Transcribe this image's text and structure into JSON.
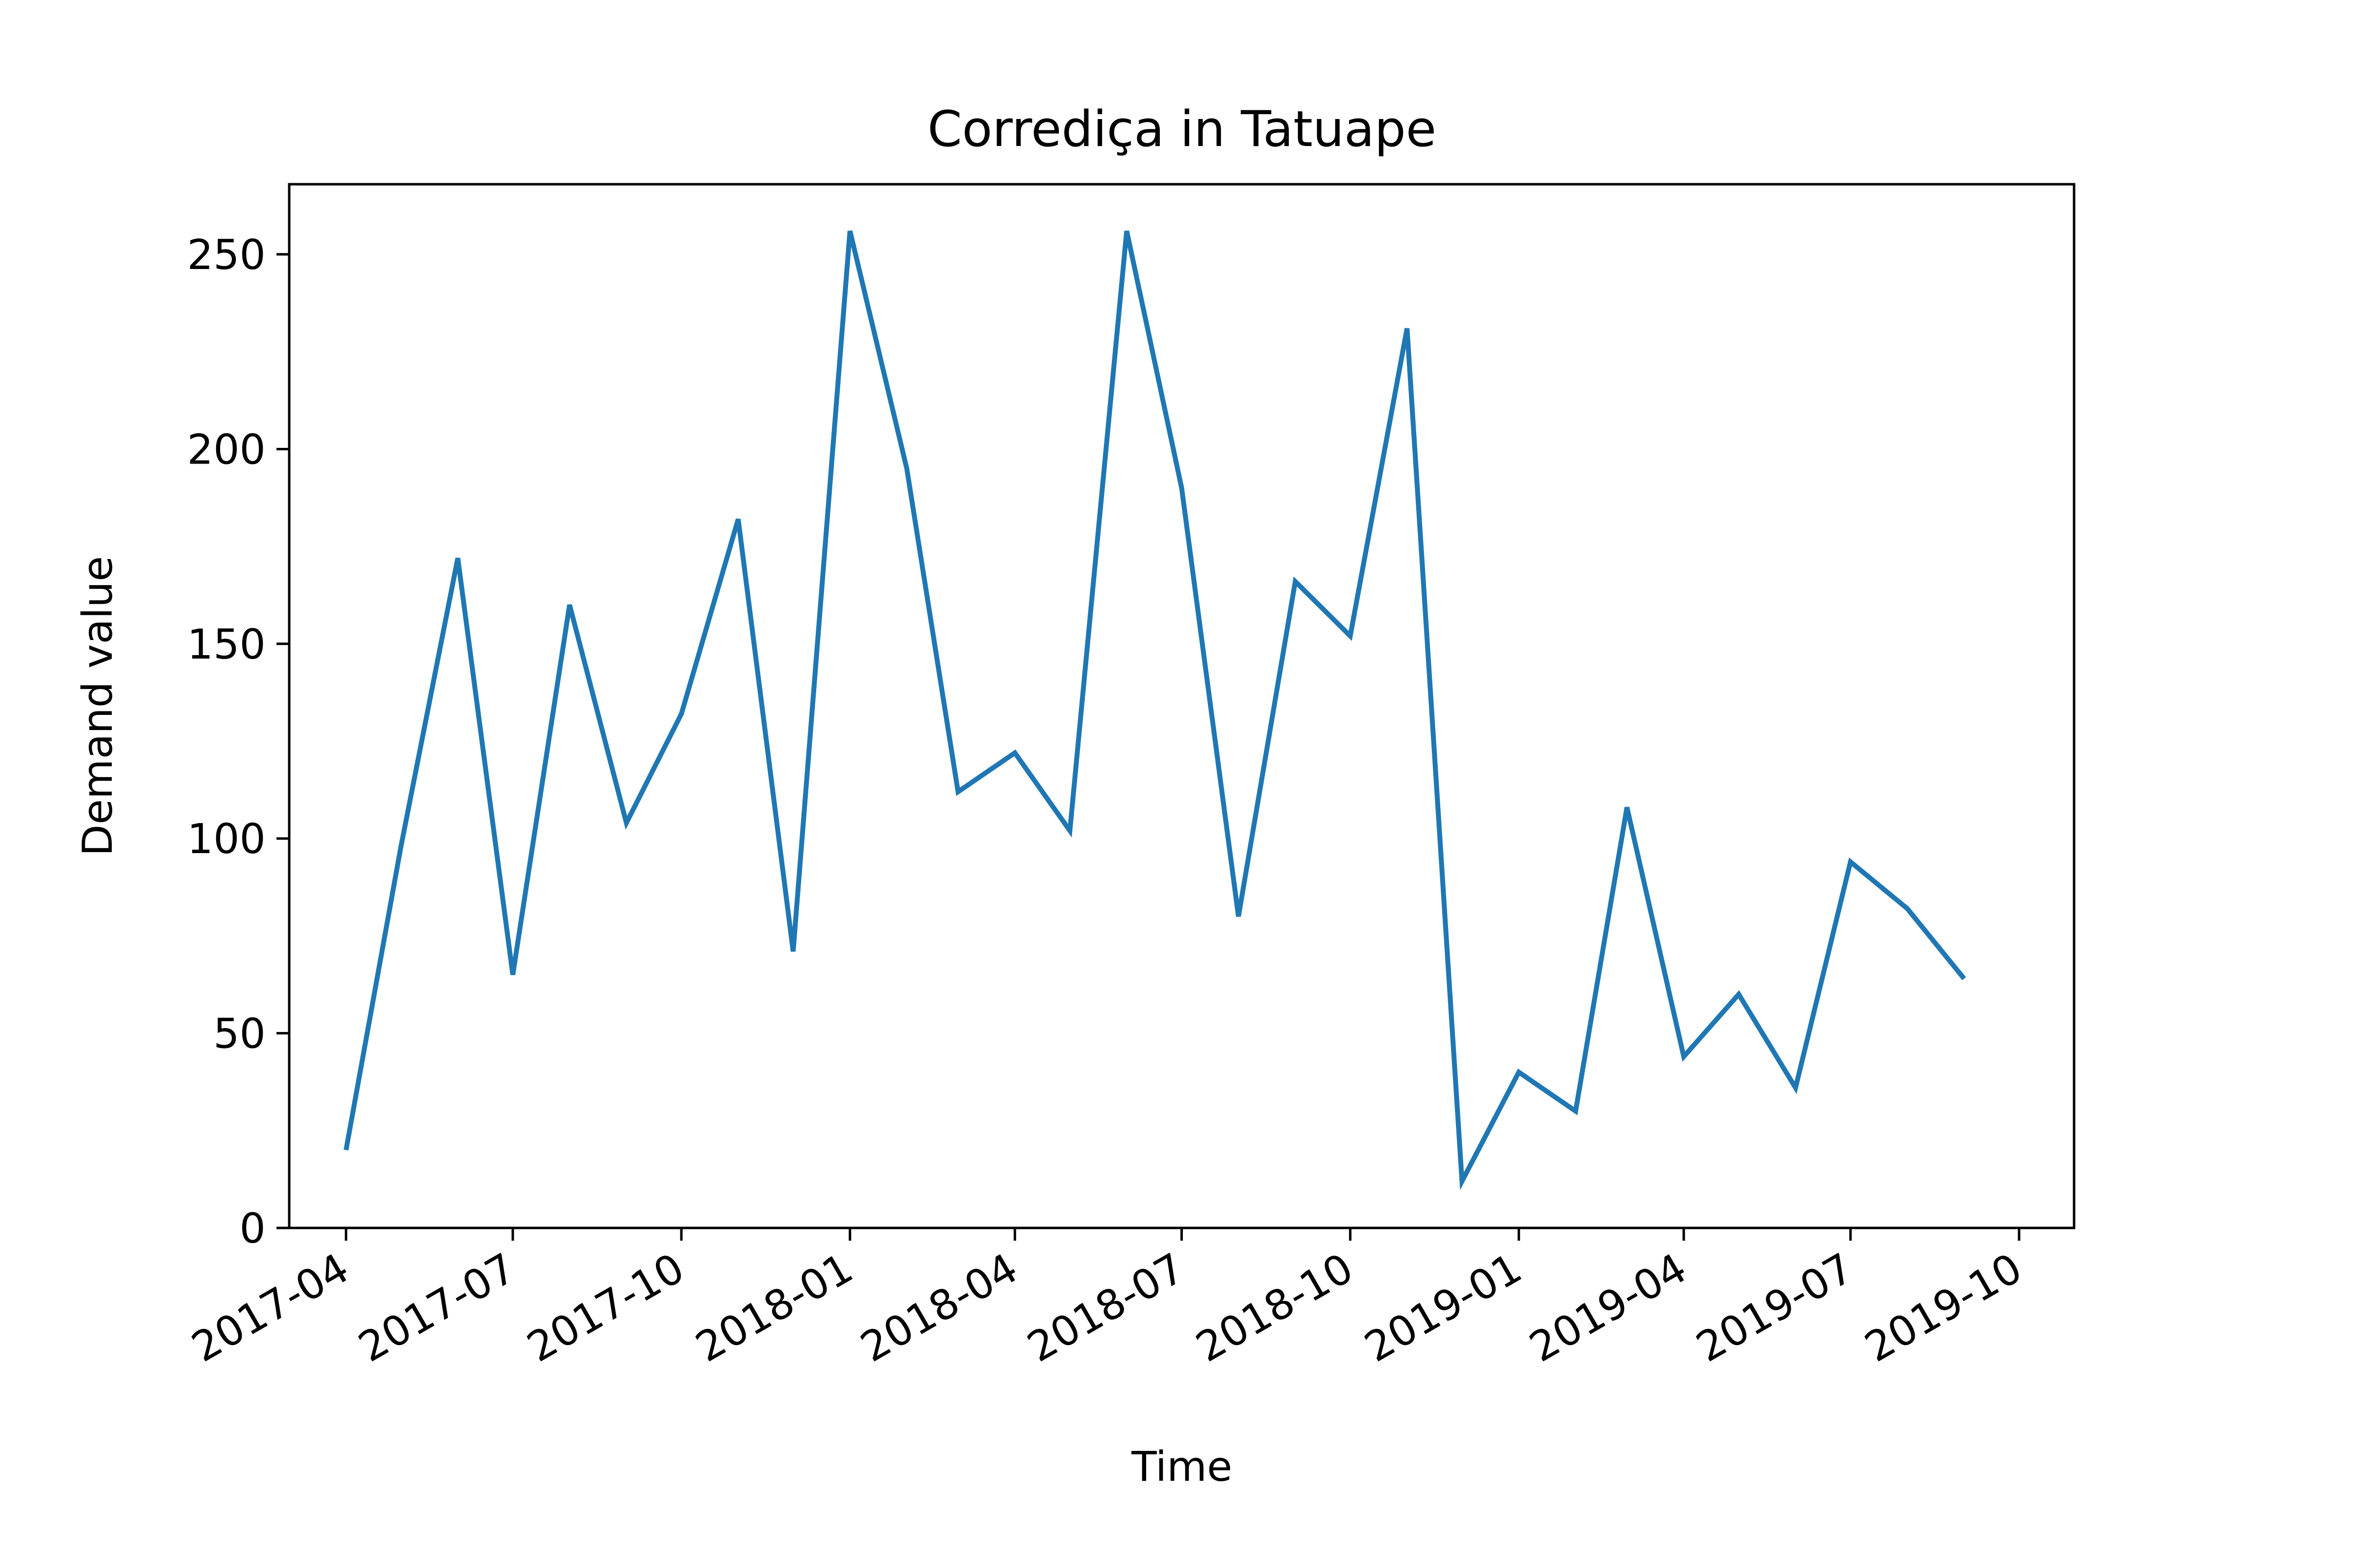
{
  "chart_data": {
    "type": "line",
    "title": "Corrediça in Tatuape",
    "xlabel": "Time",
    "ylabel": "Demand value",
    "xlim": [
      "2017-03-01",
      "2019-10-31"
    ],
    "ylim": [
      0,
      268
    ],
    "x_ticks": [
      "2017-04",
      "2017-07",
      "2017-10",
      "2018-01",
      "2018-04",
      "2018-07",
      "2018-10",
      "2019-01",
      "2019-04",
      "2019-07",
      "2019-10"
    ],
    "y_ticks": [
      "0",
      "50",
      "100",
      "150",
      "200",
      "250"
    ],
    "y_tick_values": [
      0,
      50,
      100,
      150,
      200,
      250
    ],
    "grid": false,
    "legend": "none",
    "series": [
      {
        "color": "#1f77b4",
        "x": [
          "2017-04-01",
          "2017-05-01",
          "2017-06-01",
          "2017-07-01",
          "2017-08-01",
          "2017-09-01",
          "2017-10-01",
          "2017-11-01",
          "2017-12-01",
          "2018-01-01",
          "2018-02-01",
          "2018-03-01",
          "2018-04-01",
          "2018-05-01",
          "2018-06-01",
          "2018-07-01",
          "2018-08-01",
          "2018-09-01",
          "2018-10-01",
          "2018-11-01",
          "2018-12-01",
          "2019-01-01",
          "2019-02-01",
          "2019-03-01",
          "2019-04-01",
          "2019-05-01",
          "2019-06-01",
          "2019-07-01",
          "2019-08-01",
          "2019-09-01"
        ],
        "values": [
          20,
          98,
          172,
          65,
          160,
          104,
          132,
          182,
          71,
          256,
          195,
          112,
          122,
          102,
          256,
          190,
          80,
          166,
          152,
          231,
          12,
          40,
          30,
          108,
          44,
          60,
          36,
          94,
          82,
          64
        ]
      }
    ]
  }
}
